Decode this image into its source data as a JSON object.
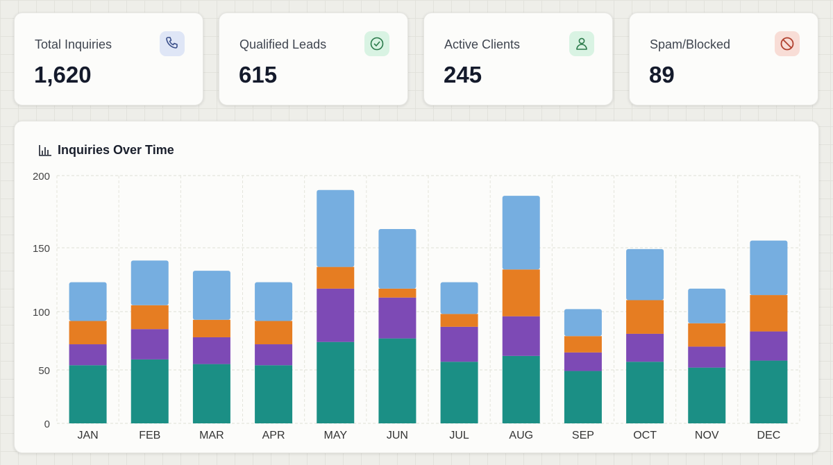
{
  "cards": [
    {
      "label": "Total Inquiries",
      "value": "1,620",
      "icon": "phone-icon",
      "icon_bg": "#dfe6f6",
      "icon_color": "#3a4f8a"
    },
    {
      "label": "Qualified Leads",
      "value": "615",
      "icon": "check-circle-icon",
      "icon_bg": "#d9f3e3",
      "icon_color": "#2a7a4a"
    },
    {
      "label": "Active Clients",
      "value": "245",
      "icon": "user-icon",
      "icon_bg": "#d9f3e3",
      "icon_color": "#2a7a4a"
    },
    {
      "label": "Spam/Blocked",
      "value": "89",
      "icon": "ban-icon",
      "icon_bg": "#f8ddd6",
      "icon_color": "#b0402e"
    }
  ],
  "chart_title": "Inquiries Over Time",
  "chart_data": {
    "type": "bar",
    "stacked": true,
    "title": "Inquiries Over Time",
    "categories": [
      "JAN",
      "FEB",
      "MAR",
      "APR",
      "MAY",
      "JUN",
      "JUL",
      "AUG",
      "SEP",
      "OCT",
      "NOV",
      "DEC"
    ],
    "series": [
      {
        "color": "#1b8f85",
        "values": [
          54,
          59,
          55,
          54,
          74,
          77,
          57,
          62,
          49,
          57,
          52,
          58
        ]
      },
      {
        "color": "#7d4ab5",
        "values": [
          18,
          26,
          23,
          18,
          44,
          34,
          30,
          34,
          16,
          24,
          18,
          25
        ]
      },
      {
        "color": "#e67d22",
        "values": [
          20,
          20,
          15,
          20,
          17,
          7,
          11,
          37,
          14,
          28,
          20,
          30
        ]
      },
      {
        "color": "#76aee0",
        "values": [
          31,
          35,
          39,
          31,
          55,
          45,
          25,
          53,
          23,
          40,
          28,
          42
        ]
      }
    ],
    "yticks": [
      0,
      50,
      100,
      150,
      200
    ],
    "ylim": [
      0,
      200
    ],
    "grid": true,
    "legend": "none"
  }
}
